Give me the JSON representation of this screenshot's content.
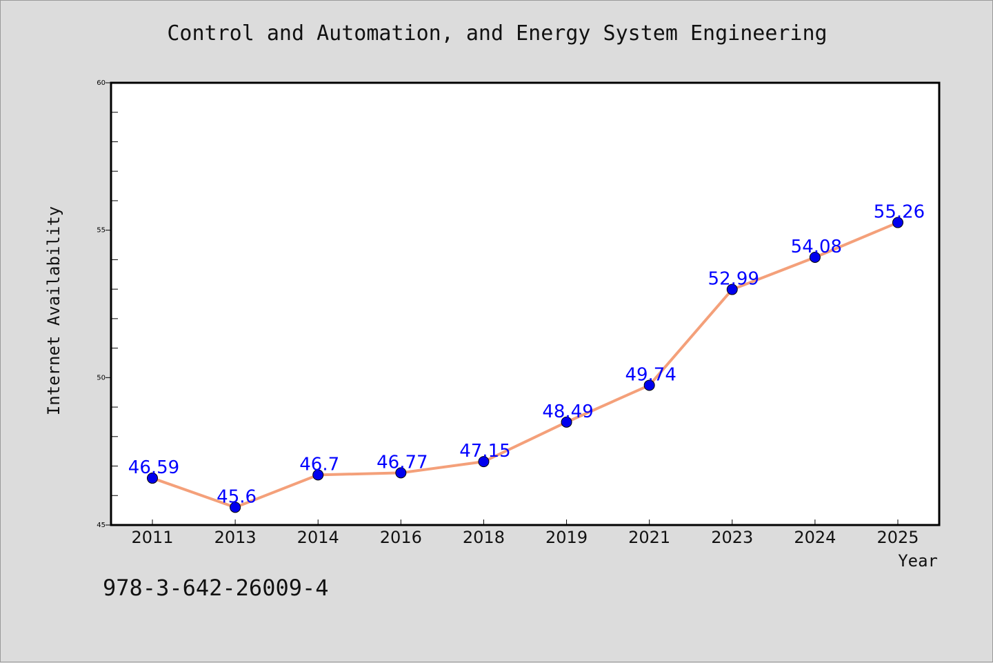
{
  "chart_data": {
    "type": "line",
    "title": "Control and Automation, and Energy System Engineering",
    "xlabel": "Year",
    "ylabel": "Internet Availability",
    "categories": [
      "2011",
      "2013",
      "2014",
      "2016",
      "2018",
      "2019",
      "2021",
      "2023",
      "2024",
      "2025"
    ],
    "series": [
      {
        "values": [
          46.59,
          45.6,
          46.7,
          46.77,
          47.15,
          48.49,
          49.74,
          52.99,
          54.08,
          55.26
        ],
        "line_color": "#f4a07a",
        "marker_color": "#0000ee",
        "label_color": "#0000ff"
      }
    ],
    "ylim": [
      45,
      60
    ],
    "yticks": [
      45,
      50,
      55,
      60
    ],
    "grid": false,
    "legend": "none"
  },
  "footer": {
    "code": "978-3-642-26009-4"
  }
}
